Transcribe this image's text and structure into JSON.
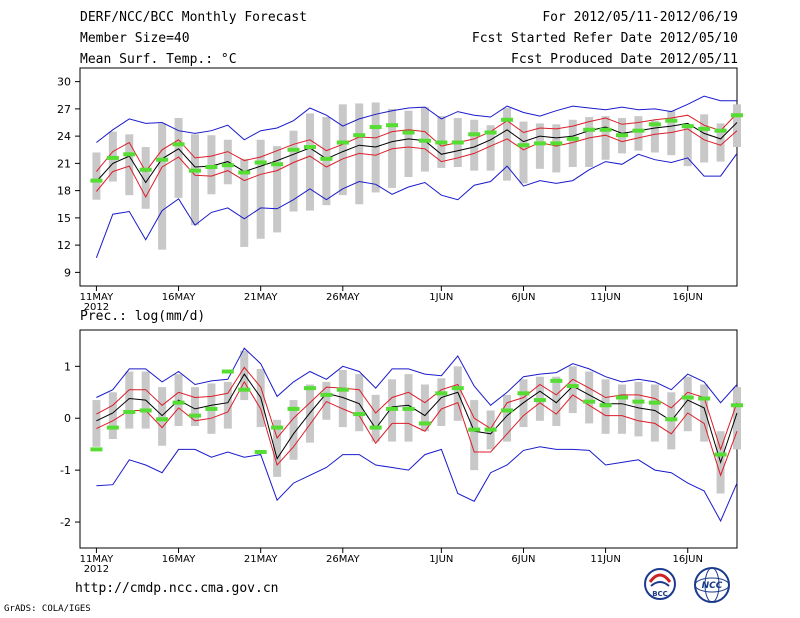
{
  "header": {
    "title": "DERF/NCC/BCC Monthly Forecast",
    "member_size": "Member Size=40",
    "variable": "Mean Surf. Temp.: °C",
    "forecast_period": "For 2012/05/11-2012/06/19",
    "started_refer": "Fcst Started Refer Date 2012/05/10",
    "produced": "Fcst Produced Date 2012/05/11"
  },
  "footer": {
    "url": "http://cmdp.ncc.cma.gov.cn",
    "credit": "GrADS: COLA/IGES",
    "logo_left_text": "BCC",
    "logo_right_text": "NCC"
  },
  "colors": {
    "envelope": "#1a1acc",
    "spread": "#dd1d2a",
    "mean": "#000000",
    "bar": "#c8c8c8",
    "obs": "#55dd33"
  },
  "chart_data": [
    {
      "type": "line",
      "title": "Mean Surf. Temp.: °C",
      "x_tick_labels": [
        "11MAY",
        "16MAY",
        "21MAY",
        "26MAY",
        "1JUN",
        "6JUN",
        "11JUN",
        "16JUN"
      ],
      "x_year_label": "2012",
      "x_tick_days": [
        1,
        6,
        11,
        16,
        22,
        27,
        32,
        37
      ],
      "x_range": [
        0,
        40
      ],
      "ylim": [
        7.5,
        31.5
      ],
      "yticks": [
        9,
        12,
        15,
        18,
        21,
        24,
        27,
        30
      ],
      "days": [
        1,
        2,
        3,
        4,
        5,
        6,
        7,
        8,
        9,
        10,
        11,
        12,
        13,
        14,
        15,
        16,
        17,
        18,
        19,
        20,
        21,
        22,
        23,
        24,
        25,
        26,
        27,
        28,
        29,
        30,
        31,
        32,
        33,
        34,
        35,
        36,
        37,
        38,
        39,
        40
      ],
      "series": [
        {
          "name": "ensemble max",
          "values": [
            23.3,
            24.7,
            25.9,
            25.4,
            25.5,
            24.6,
            24.3,
            24.6,
            25.2,
            23.6,
            24.6,
            24.9,
            25.7,
            27.1,
            26.3,
            25.1,
            25.9,
            26.4,
            26.8,
            27.1,
            27.2,
            25.9,
            26.7,
            26.3,
            26.1,
            27.3,
            26.6,
            26.2,
            26.8,
            27.3,
            27.1,
            26.9,
            27.2,
            26.9,
            27.0,
            26.7,
            27.5,
            28.4,
            27.9,
            27.9
          ]
        },
        {
          "name": "ensemble upper",
          "values": [
            20.1,
            22.3,
            23.3,
            20.1,
            22.5,
            23.6,
            21.6,
            21.8,
            22.3,
            21.3,
            21.7,
            22.4,
            23.1,
            23.6,
            22.4,
            23.1,
            23.9,
            23.8,
            24.5,
            24.7,
            24.5,
            22.9,
            23.3,
            23.7,
            24.5,
            25.7,
            24.4,
            24.9,
            24.8,
            25.1,
            25.6,
            26.0,
            25.3,
            25.5,
            25.8,
            26.0,
            26.3,
            25.2,
            24.6,
            26.5
          ]
        },
        {
          "name": "ensemble mean",
          "values": [
            19.0,
            21.0,
            21.8,
            18.9,
            21.5,
            22.6,
            20.6,
            20.7,
            21.2,
            20.1,
            20.7,
            21.3,
            22.0,
            22.7,
            21.5,
            22.3,
            23.0,
            22.8,
            23.4,
            23.7,
            23.5,
            22.0,
            22.4,
            22.8,
            23.6,
            24.7,
            23.4,
            24.0,
            23.8,
            24.0,
            24.6,
            25.0,
            24.3,
            24.6,
            24.9,
            25.1,
            25.4,
            24.3,
            23.7,
            25.5
          ]
        },
        {
          "name": "ensemble lower",
          "values": [
            17.9,
            20.1,
            20.7,
            17.3,
            20.6,
            21.7,
            19.7,
            19.6,
            20.2,
            19.1,
            19.8,
            20.2,
            21.1,
            21.8,
            20.6,
            21.5,
            22.1,
            21.9,
            22.6,
            22.8,
            22.6,
            21.2,
            21.6,
            22.1,
            22.9,
            23.7,
            22.5,
            23.3,
            22.9,
            23.3,
            23.8,
            24.1,
            23.4,
            23.8,
            24.2,
            24.4,
            24.8,
            23.6,
            23.0,
            24.6
          ]
        },
        {
          "name": "ensemble min",
          "values": [
            10.6,
            15.4,
            15.7,
            12.6,
            15.8,
            17.1,
            14.2,
            15.6,
            16.1,
            14.9,
            16.1,
            16.0,
            17.0,
            18.2,
            17.0,
            18.2,
            19.0,
            18.7,
            17.6,
            18.4,
            18.9,
            17.5,
            17.0,
            18.6,
            19.0,
            20.7,
            18.5,
            19.1,
            18.8,
            19.1,
            20.3,
            21.2,
            20.9,
            22.0,
            21.4,
            21.1,
            21.6,
            19.6,
            19.6,
            22.1
          ]
        }
      ],
      "bars": {
        "min": [
          17.0,
          19.0,
          17.5,
          16.0,
          11.5,
          17.2,
          14.2,
          17.6,
          18.7,
          11.8,
          12.7,
          13.4,
          15.7,
          15.8,
          16.4,
          17.5,
          16.5,
          17.8,
          18.3,
          19.5,
          20.1,
          20.5,
          20.6,
          20.2,
          20.2,
          19.1,
          18.8,
          20.4,
          20.0,
          20.6,
          20.6,
          21.4,
          22.1,
          22.4,
          22.2,
          21.9,
          20.7,
          21.1,
          21.2,
          22.8
        ],
        "max": [
          22.2,
          24.5,
          24.2,
          22.8,
          25.4,
          26.0,
          24.2,
          24.1,
          23.6,
          21.5,
          23.6,
          22.9,
          24.6,
          26.5,
          26.1,
          27.5,
          27.6,
          27.7,
          27.0,
          26.8,
          27.2,
          26.2,
          26.0,
          25.8,
          25.2,
          27.1,
          25.6,
          25.4,
          25.3,
          25.8,
          26.1,
          26.2,
          26.0,
          26.2,
          25.7,
          26.8,
          25.0,
          26.4,
          25.4,
          27.5
        ]
      },
      "observed": [
        19.1,
        21.6,
        22.0,
        20.3,
        21.4,
        23.1,
        20.2,
        20.6,
        20.8,
        20.0,
        21.1,
        20.9,
        22.5,
        22.8,
        21.5,
        23.3,
        24.1,
        25.0,
        25.2,
        24.4,
        23.5,
        23.3,
        23.3,
        24.2,
        24.4,
        25.8,
        23.0,
        23.2,
        23.2,
        23.7,
        24.7,
        24.7,
        24.1,
        24.6,
        25.3,
        25.7,
        25.1,
        24.8,
        24.6,
        26.3
      ]
    },
    {
      "type": "line",
      "title": "Prec.: log(mm/d)",
      "x_tick_labels": [
        "11MAY",
        "16MAY",
        "21MAY",
        "26MAY",
        "1JUN",
        "6JUN",
        "11JUN",
        "16JUN"
      ],
      "x_year_label": "2012",
      "x_tick_days": [
        1,
        6,
        11,
        16,
        22,
        27,
        32,
        37
      ],
      "x_range": [
        0,
        40
      ],
      "ylim": [
        -2.5,
        1.7
      ],
      "yticks": [
        -2,
        -1,
        0,
        1
      ],
      "days": [
        1,
        2,
        3,
        4,
        5,
        6,
        7,
        8,
        9,
        10,
        11,
        12,
        13,
        14,
        15,
        16,
        17,
        18,
        19,
        20,
        21,
        22,
        23,
        24,
        25,
        26,
        27,
        28,
        29,
        30,
        31,
        32,
        33,
        34,
        35,
        36,
        37,
        38,
        39,
        40
      ],
      "series": [
        {
          "name": "ensemble max",
          "values": [
            0.4,
            0.55,
            0.95,
            0.95,
            0.7,
            0.9,
            0.65,
            0.72,
            0.75,
            1.35,
            1.05,
            0.42,
            0.7,
            0.9,
            0.75,
            1.0,
            0.9,
            0.58,
            0.95,
            0.95,
            0.85,
            0.82,
            1.2,
            0.62,
            0.25,
            0.5,
            0.8,
            0.85,
            0.88,
            1.05,
            0.95,
            0.8,
            0.7,
            0.75,
            0.7,
            0.55,
            0.85,
            0.7,
            0.3,
            0.65
          ]
        },
        {
          "name": "ensemble upper",
          "values": [
            0.08,
            0.25,
            0.55,
            0.55,
            0.25,
            0.5,
            0.4,
            0.42,
            0.48,
            0.98,
            0.6,
            -0.38,
            0.0,
            0.3,
            0.6,
            0.58,
            0.55,
            0.1,
            0.4,
            0.5,
            0.3,
            0.55,
            0.65,
            0.0,
            -0.2,
            0.3,
            0.4,
            0.65,
            0.45,
            0.75,
            0.58,
            0.4,
            0.45,
            0.45,
            0.38,
            0.2,
            0.5,
            0.4,
            -0.6,
            0.3
          ]
        },
        {
          "name": "ensemble mean",
          "values": [
            -0.05,
            0.1,
            0.38,
            0.35,
            0.05,
            0.35,
            0.18,
            0.25,
            0.3,
            0.85,
            0.4,
            -0.78,
            -0.3,
            0.1,
            0.48,
            0.4,
            0.28,
            -0.2,
            0.22,
            0.25,
            0.05,
            0.4,
            0.5,
            -0.25,
            -0.3,
            0.05,
            0.3,
            0.52,
            0.3,
            0.62,
            0.45,
            0.28,
            0.28,
            0.2,
            0.15,
            -0.05,
            0.35,
            0.2,
            -0.85,
            0.1
          ]
        },
        {
          "name": "ensemble lower",
          "values": [
            -0.2,
            -0.05,
            0.15,
            0.15,
            -0.18,
            0.2,
            -0.05,
            0.0,
            0.12,
            0.7,
            0.18,
            -0.9,
            -0.55,
            -0.12,
            0.32,
            0.18,
            0.05,
            -0.48,
            -0.1,
            -0.1,
            -0.25,
            0.18,
            0.3,
            -0.65,
            -0.65,
            -0.3,
            0.05,
            0.3,
            0.08,
            0.45,
            0.25,
            0.05,
            0.05,
            -0.05,
            -0.1,
            -0.3,
            0.1,
            -0.1,
            -1.1,
            -0.25
          ]
        },
        {
          "name": "ensemble min",
          "values": [
            -1.3,
            -1.28,
            -0.8,
            -0.9,
            -1.05,
            -0.6,
            -0.6,
            -0.75,
            -0.65,
            -0.75,
            -0.7,
            -1.58,
            -1.25,
            -1.1,
            -0.95,
            -0.7,
            -0.7,
            -0.9,
            -0.95,
            -1.0,
            -0.7,
            -0.6,
            -1.45,
            -1.6,
            -1.05,
            -0.9,
            -0.62,
            -0.55,
            -0.6,
            -0.6,
            -0.62,
            -0.9,
            -0.85,
            -0.8,
            -1.0,
            -1.05,
            -1.25,
            -1.4,
            -1.98,
            -1.25
          ]
        },
        {
          "name": "observed",
          "values": [
            -0.6,
            -0.18,
            0.12,
            0.15,
            -0.02,
            0.3,
            0.05,
            0.18,
            0.9,
            0.55,
            -0.65,
            -0.18,
            0.18,
            0.58,
            0.45,
            0.55,
            0.08,
            -0.18,
            0.18,
            0.18,
            -0.1,
            0.48,
            0.58,
            -0.22,
            -0.22,
            0.15,
            0.48,
            0.35,
            0.72,
            0.62,
            0.32,
            0.25,
            0.4,
            0.32,
            0.3,
            -0.02,
            0.4,
            0.38,
            -0.7,
            0.25
          ]
        }
      ]
    }
  ]
}
